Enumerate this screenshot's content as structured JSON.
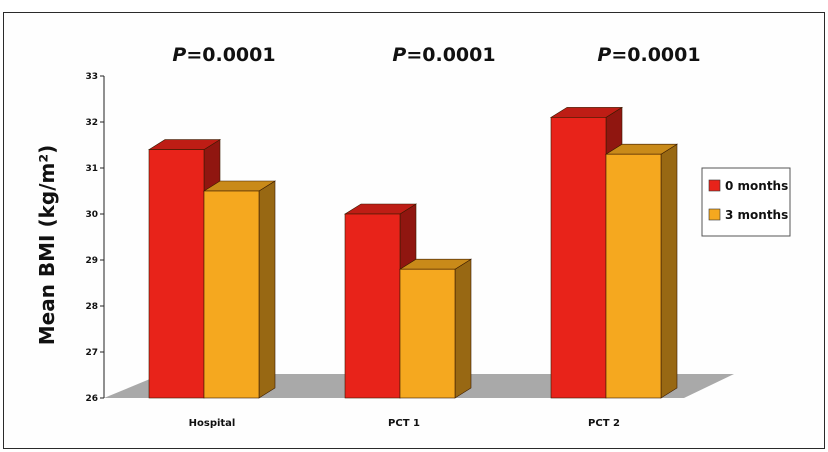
{
  "chart_data": {
    "type": "bar",
    "categories": [
      "Hospital",
      "PCT 1",
      "PCT 2"
    ],
    "series": [
      {
        "name": "0 months",
        "values": [
          31.4,
          30.0,
          32.1
        ],
        "color": "#e8231a"
      },
      {
        "name": "3 months",
        "values": [
          30.5,
          28.8,
          31.3
        ],
        "color": "#f5a81f"
      }
    ],
    "ylim": [
      26,
      33
    ],
    "yticks": [
      26,
      27,
      28,
      29,
      30,
      31,
      32,
      33
    ],
    "ylabel": "Mean BMI (kg/m²)",
    "annotations": [
      {
        "italic": "P",
        "text": "=0.0001"
      },
      {
        "italic": "P",
        "text": "=0.0001"
      },
      {
        "italic": "P",
        "text": "=0.0001"
      }
    ],
    "legend_position": "right",
    "style": "3d",
    "floor_color": "#a9a9a9"
  }
}
